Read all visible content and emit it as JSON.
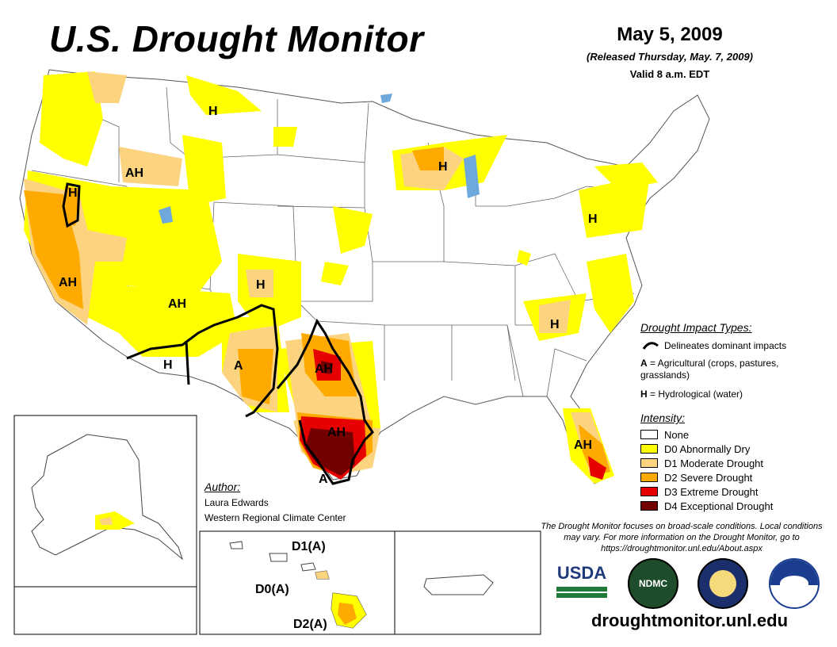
{
  "header": {
    "title": "U.S. Drought Monitor",
    "date": "May 5, 2009",
    "released": "(Released Thursday, May. 7, 2009)",
    "valid": "Valid 8 a.m. EDT"
  },
  "colors": {
    "none": "#ffffff",
    "d0": "#ffff00",
    "d1": "#fcd37f",
    "d2": "#ffaa00",
    "d3": "#e60000",
    "d4": "#730000"
  },
  "map_labels": {
    "h_north_rockies": "H",
    "ah_idaho": "AH",
    "h_nevada": "H",
    "ah_california": "AH",
    "ah_utah": "AH",
    "h_colorado": "H",
    "h_arizona": "H",
    "a_new_mexico": "A",
    "ah_oklahoma": "AH",
    "ah_texas": "AH",
    "a_south_texas": "A",
    "h_wisconsin": "H",
    "h_pennsylvania": "H",
    "h_carolinas": "H",
    "ah_florida": "AH"
  },
  "hawaii_labels": {
    "d1": "D1(A)",
    "d0": "D0(A)",
    "d2": "D2(A)"
  },
  "impacts": {
    "heading": "Drought Impact Types:",
    "delineates": "Delineates dominant impacts",
    "a_prefix": "A",
    "a_text": " = Agricultural (crops, pastures, grasslands)",
    "h_prefix": "H",
    "h_text": " = Hydrological (water)"
  },
  "intensity": {
    "heading": "Intensity:",
    "items": [
      {
        "label": "None",
        "color": "#ffffff"
      },
      {
        "label": "D0 Abnormally Dry",
        "color": "#ffff00"
      },
      {
        "label": "D1 Moderate Drought",
        "color": "#fcd37f"
      },
      {
        "label": "D2 Severe Drought",
        "color": "#ffaa00"
      },
      {
        "label": "D3 Extreme Drought",
        "color": "#e60000"
      },
      {
        "label": "D4 Exceptional Drought",
        "color": "#730000"
      }
    ]
  },
  "author": {
    "heading": "Author:",
    "name": "Laura Edwards",
    "org": "Western Regional Climate Center"
  },
  "disclaimer": "The Drought Monitor focuses on broad-scale conditions. Local conditions may vary. For more information on the Drought Monitor, go to https://droughtmonitor.unl.edu/About.aspx",
  "logos": {
    "usda": "USDA",
    "ndmc": "NDMC"
  },
  "website": "droughtmonitor.unl.edu"
}
